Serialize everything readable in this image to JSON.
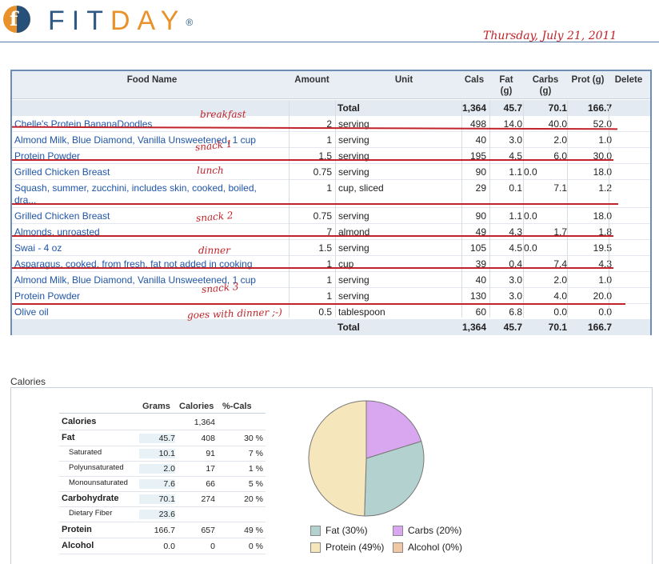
{
  "header": {
    "logo_text_a": "FIT",
    "logo_text_b": "DAY",
    "logo_reg": "®",
    "date": "Thursday, July 21, 2011"
  },
  "food_table": {
    "columns": {
      "food": "Food Name",
      "amount": "Amount",
      "unit": "Unit",
      "cals": "Cals",
      "fat": "Fat (g)",
      "carbs": "Carbs (g)",
      "prot": "Prot (g)",
      "delete": "Delete"
    },
    "total_top": {
      "label": "Total",
      "cals": "1,364",
      "fat": "45.7",
      "carbs": "70.1",
      "prot": "166.7"
    },
    "rows": [
      {
        "food": "Chelle's Protein BananaDoodles",
        "amount": "2",
        "unit": "serving",
        "cals": "498",
        "fat": "14.0",
        "carbs": "40.0",
        "prot": "52.0"
      },
      {
        "food": "Almond Milk, Blue Diamond, Vanilla Unsweetened, 1 cup",
        "amount": "1",
        "unit": "serving",
        "cals": "40",
        "fat": "3.0",
        "carbs": "2.0",
        "prot": "1.0"
      },
      {
        "food": "Protein Powder",
        "amount": "1.5",
        "unit": "serving",
        "cals": "195",
        "fat": "4.5",
        "carbs": "6.0",
        "prot": "30.0"
      },
      {
        "food": "Grilled Chicken Breast",
        "amount": "0.75",
        "unit": "serving",
        "cals": "90",
        "fat": "1.1",
        "carbs": "0.0",
        "prot": "18.0"
      },
      {
        "food": "Squash, summer, zucchini, includes skin, cooked, boiled, dra...",
        "amount": "1",
        "unit": "cup, sliced",
        "cals": "29",
        "fat": "0.1",
        "carbs": "7.1",
        "prot": "1.2"
      },
      {
        "food": "Grilled Chicken Breast",
        "amount": "0.75",
        "unit": "serving",
        "cals": "90",
        "fat": "1.1",
        "carbs": "0.0",
        "prot": "18.0"
      },
      {
        "food": "Almonds, unroasted",
        "amount": "7",
        "unit": "almond",
        "cals": "49",
        "fat": "4.3",
        "carbs": "1.7",
        "prot": "1.8"
      },
      {
        "food": "Swai - 4 oz",
        "amount": "1.5",
        "unit": "serving",
        "cals": "105",
        "fat": "4.5",
        "carbs": "0.0",
        "prot": "19.5"
      },
      {
        "food": "Asparagus, cooked, from fresh, fat not added in cooking",
        "amount": "1",
        "unit": "cup",
        "cals": "39",
        "fat": "0.4",
        "carbs": "7.4",
        "prot": "4.3"
      },
      {
        "food": "Almond Milk, Blue Diamond, Vanilla Unsweetened, 1 cup",
        "amount": "1",
        "unit": "serving",
        "cals": "40",
        "fat": "3.0",
        "carbs": "2.0",
        "prot": "1.0"
      },
      {
        "food": "Protein Powder",
        "amount": "1",
        "unit": "serving",
        "cals": "130",
        "fat": "3.0",
        "carbs": "4.0",
        "prot": "20.0"
      },
      {
        "food": "Olive oil",
        "amount": "0.5",
        "unit": "tablespoon",
        "cals": "60",
        "fat": "6.8",
        "carbs": "0.0",
        "prot": "0.0"
      }
    ],
    "total_bottom": {
      "label": "Total",
      "cals": "1,364",
      "fat": "45.7",
      "carbs": "70.1",
      "prot": "166.7"
    }
  },
  "annotations": {
    "breakfast": "breakfast",
    "snack1": "snack 1",
    "lunch": "lunch",
    "snack2": "snack 2",
    "dinner": "dinner",
    "snack3": "snack 3",
    "goes_with_dinner": "goes with dinner ;-)"
  },
  "calories_section": {
    "title": "Calories",
    "columns": {
      "grams": "Grams",
      "calories": "Calories",
      "pct": "%-Cals"
    },
    "rows": [
      {
        "label": "Calories",
        "grams": "",
        "calories": "1,364",
        "pct": ""
      },
      {
        "label": "Fat",
        "grams": "45.7",
        "calories": "408",
        "pct": "30 %"
      },
      {
        "label": "Saturated",
        "grams": "10.1",
        "calories": "91",
        "pct": "7 %"
      },
      {
        "label": "Polyunsaturated",
        "grams": "2.0",
        "calories": "17",
        "pct": "1 %"
      },
      {
        "label": "Monounsaturated",
        "grams": "7.6",
        "calories": "66",
        "pct": "5 %"
      },
      {
        "label": "Carbohydrate",
        "grams": "70.1",
        "calories": "274",
        "pct": "20 %"
      },
      {
        "label": "Dietary Fiber",
        "grams": "23.6",
        "calories": "",
        "pct": ""
      },
      {
        "label": "Protein",
        "grams": "166.7",
        "calories": "657",
        "pct": "49 %"
      },
      {
        "label": "Alcohol",
        "grams": "0.0",
        "calories": "0",
        "pct": "0 %"
      }
    ],
    "legend": {
      "fat": "Fat (30%)",
      "carbs": "Carbs (20%)",
      "protein": "Protein (49%)",
      "alcohol": "Alcohol (0%)"
    }
  },
  "chart_data": {
    "type": "pie",
    "categories": [
      "Fat",
      "Carbs",
      "Protein",
      "Alcohol"
    ],
    "values": [
      30,
      20,
      49,
      0
    ],
    "colors": [
      "#b3d2cf",
      "#d8a7ef",
      "#f5e7bb",
      "#f0c9a4"
    ]
  },
  "colors": {
    "link": "#1f55a8",
    "annotation_red": "#c0232a",
    "brand_orange": "#e9922b",
    "brand_blue": "#2e5a85"
  }
}
